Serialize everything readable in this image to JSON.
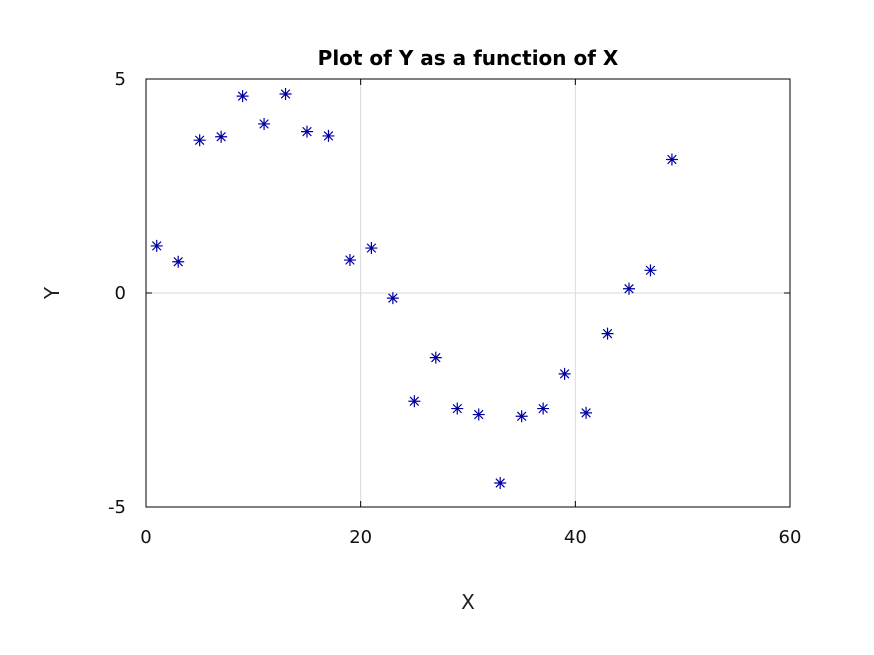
{
  "chart_data": {
    "type": "scatter",
    "title": "Plot of Y as a function of X",
    "xlabel": "X",
    "ylabel": "Y",
    "xlim": [
      0,
      60
    ],
    "ylim": [
      -5,
      5
    ],
    "xticks": [
      0,
      20,
      40,
      60
    ],
    "yticks": [
      -5,
      0,
      5
    ],
    "xtick_labels": [
      "0",
      "20",
      "40",
      "60"
    ],
    "ytick_labels": [
      "-5",
      "0",
      "5"
    ],
    "grid": true,
    "marker": "asterisk",
    "marker_color": "#0000a0",
    "x": [
      1,
      3,
      5,
      7,
      9,
      11,
      13,
      15,
      17,
      19,
      21,
      23,
      25,
      27,
      29,
      31,
      33,
      35,
      37,
      39,
      41,
      43,
      45,
      47,
      49
    ],
    "y": [
      1.1,
      0.73,
      3.57,
      3.65,
      4.6,
      3.95,
      4.65,
      3.77,
      3.67,
      0.77,
      1.05,
      -0.12,
      -2.53,
      -1.51,
      -2.7,
      -2.84,
      -4.44,
      -2.88,
      -2.7,
      -1.89,
      -2.8,
      -0.95,
      0.1,
      0.53,
      3.12
    ]
  }
}
